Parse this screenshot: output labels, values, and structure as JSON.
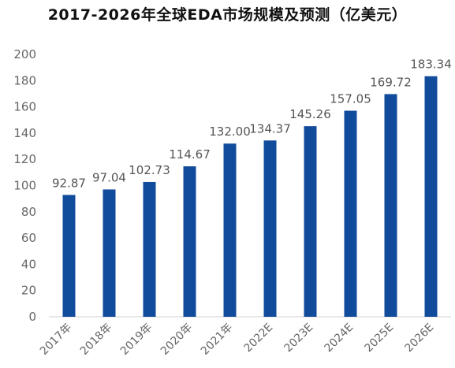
{
  "chart_data": {
    "type": "bar",
    "title": "2017-2026年全球EDA市场规模及预测（亿美元）",
    "categories": [
      "2017年",
      "2018年",
      "2019年",
      "2020年",
      "2021年",
      "2022E",
      "2023E",
      "2024E",
      "2025E",
      "2026E"
    ],
    "values": [
      92.87,
      97.04,
      102.73,
      114.67,
      132.0,
      134.37,
      145.26,
      157.05,
      169.72,
      183.34
    ],
    "value_labels": [
      "92.87",
      "97.04",
      "102.73",
      "114.67",
      "132.00",
      "134.37",
      "145.26",
      "157.05",
      "169.72",
      "183.34"
    ],
    "xlabel": "",
    "ylabel": "",
    "ylim": [
      0,
      200
    ],
    "yticks": [
      0,
      20,
      40,
      60,
      80,
      100,
      120,
      140,
      160,
      180,
      200
    ],
    "grid": false,
    "legend": "none",
    "bar_color": "#114b9b"
  }
}
